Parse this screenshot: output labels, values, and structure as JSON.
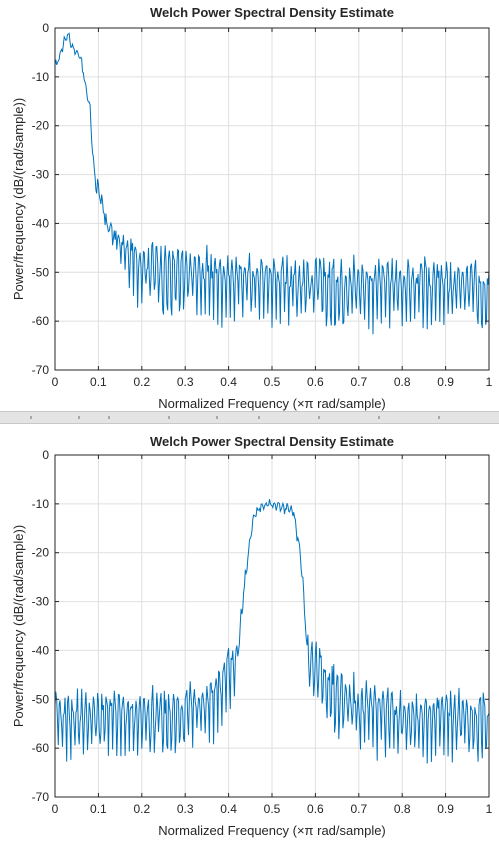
{
  "ui": {
    "background": "#f0f0f0",
    "plot_background": "#ffffff",
    "divider_color": "#e4e4e4"
  },
  "chart_data": [
    {
      "type": "line",
      "title": "Welch Power Spectral Density Estimate",
      "xlabel": "Normalized Frequency  (×π rad/sample)",
      "ylabel": "Power/frequency (dB/(rad/sample))",
      "xlim": [
        0,
        1
      ],
      "ylim": [
        -70,
        0
      ],
      "xticks": [
        0,
        0.1,
        0.2,
        0.3,
        0.4,
        0.5,
        0.6,
        0.7,
        0.8,
        0.9,
        1
      ],
      "xtick_labels": [
        "0",
        "0.1",
        "0.2",
        "0.3",
        "0.4",
        "0.5",
        "0.6",
        "0.7",
        "0.8",
        "0.9",
        "1"
      ],
      "yticks": [
        0,
        -10,
        -20,
        -30,
        -40,
        -50,
        -60,
        -70
      ],
      "ytick_labels": [
        "0",
        "-10",
        "-20",
        "-30",
        "-40",
        "-50",
        "-60",
        "-70"
      ],
      "grid": true,
      "line_color": "#0072bd",
      "series": [
        {
          "x": [
            0,
            0.01,
            0.02,
            0.03,
            0.04,
            0.05,
            0.06,
            0.07,
            0.08,
            0.09,
            0.1,
            0.11,
            0.12,
            0.13,
            0.14,
            0.15,
            0.16,
            0.17,
            0.18,
            0.19,
            0.2,
            0.22,
            0.24,
            0.26,
            0.28,
            0.3,
            0.32,
            0.34,
            0.36,
            0.38,
            0.4,
            0.42,
            0.44,
            0.46,
            0.48,
            0.5,
            0.52,
            0.54,
            0.56,
            0.58,
            0.6,
            0.62,
            0.64,
            0.66,
            0.68,
            0.7,
            0.72,
            0.74,
            0.76,
            0.78,
            0.8,
            0.82,
            0.84,
            0.86,
            0.88,
            0.9,
            0.92,
            0.94,
            0.96,
            0.98,
            1
          ],
          "y": [
            -8,
            -6,
            -3,
            -1,
            -4,
            -5,
            -6,
            -12,
            -16,
            -29,
            -34,
            -37,
            -40,
            -42,
            -43,
            -44,
            -45,
            -46,
            -46.5,
            -47,
            -47.5,
            -48,
            -48.5,
            -49,
            -49.2,
            -49.5,
            -49.7,
            -50,
            -50.2,
            -50.3,
            -50.5,
            -50.6,
            -50.7,
            -50.8,
            -50.8,
            -51,
            -51,
            -51,
            -51.2,
            -51.3,
            -51.4,
            -51.5,
            -51.5,
            -51.5,
            -51.6,
            -51.7,
            -51.8,
            -51.8,
            -51.8,
            -51.8,
            -51.9,
            -52,
            -52,
            -52,
            -52,
            -52,
            -52,
            -52,
            -52,
            -52,
            -52
          ]
        }
      ]
    },
    {
      "type": "line",
      "title": "Welch Power Spectral Density Estimate",
      "xlabel": "Normalized Frequency  (×π rad/sample)",
      "ylabel": "Power/frequency (dB/(rad/sample))",
      "xlim": [
        0,
        1
      ],
      "ylim": [
        -70,
        0
      ],
      "xticks": [
        0,
        0.1,
        0.2,
        0.3,
        0.4,
        0.5,
        0.6,
        0.7,
        0.8,
        0.9,
        1
      ],
      "xtick_labels": [
        "0",
        "0.1",
        "0.2",
        "0.3",
        "0.4",
        "0.5",
        "0.6",
        "0.7",
        "0.8",
        "0.9",
        "1"
      ],
      "yticks": [
        0,
        -10,
        -20,
        -30,
        -40,
        -50,
        -60,
        -70
      ],
      "ytick_labels": [
        "0",
        "-10",
        "-20",
        "-30",
        "-40",
        "-50",
        "-60",
        "-70"
      ],
      "grid": true,
      "line_color": "#0072bd",
      "series": [
        {
          "x": [
            0,
            0.05,
            0.1,
            0.15,
            0.2,
            0.25,
            0.3,
            0.33,
            0.36,
            0.38,
            0.4,
            0.41,
            0.42,
            0.425,
            0.43,
            0.44,
            0.45,
            0.46,
            0.47,
            0.48,
            0.5,
            0.52,
            0.53,
            0.54,
            0.55,
            0.56,
            0.57,
            0.575,
            0.58,
            0.59,
            0.6,
            0.62,
            0.64,
            0.67,
            0.7,
            0.75,
            0.8,
            0.85,
            0.9,
            0.95,
            1
          ],
          "y": [
            -53,
            -53,
            -53,
            -53,
            -53,
            -52.5,
            -52,
            -51,
            -49,
            -47,
            -44,
            -43,
            -42,
            -38,
            -32,
            -24,
            -17,
            -12,
            -11,
            -10.5,
            -10,
            -10.5,
            -11,
            -11,
            -12,
            -17,
            -24,
            -32,
            -38,
            -42,
            -43,
            -44,
            -47,
            -49,
            -51,
            -52,
            -52.5,
            -53,
            -53,
            -53,
            -53
          ]
        }
      ]
    }
  ]
}
